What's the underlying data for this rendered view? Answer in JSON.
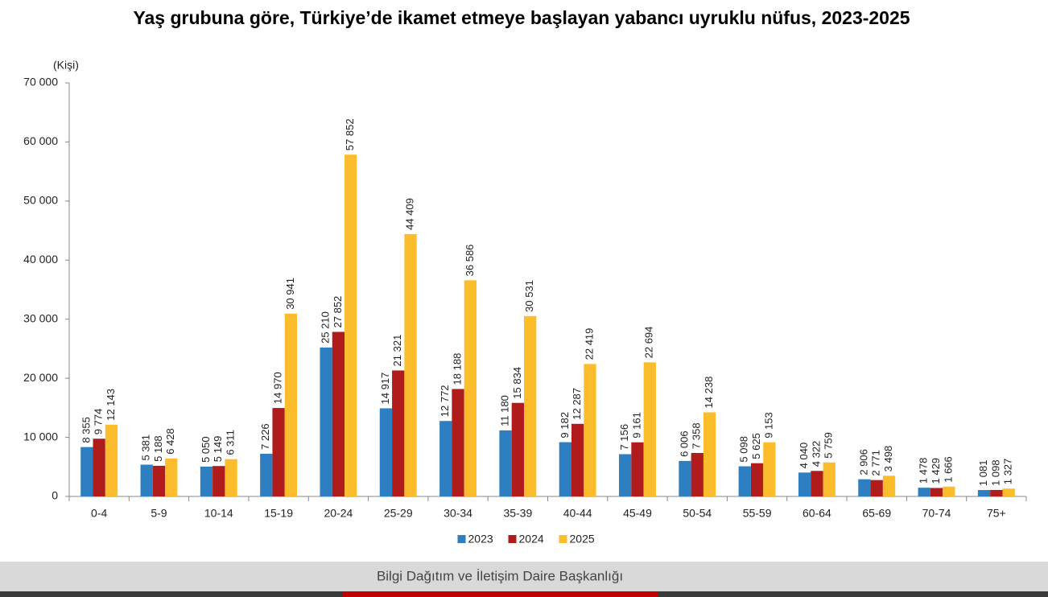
{
  "chart_data": {
    "type": "bar",
    "title": "Yaş grubuna göre, Türkiye’de ikamet etmeye başlayan yabancı uyruklu nüfus, 2023-2025",
    "y_label": "(Kişi)",
    "categories": [
      "0-4",
      "5-9",
      "10-14",
      "15-19",
      "20-24",
      "25-29",
      "30-34",
      "35-39",
      "40-44",
      "45-49",
      "50-54",
      "55-59",
      "60-64",
      "65-69",
      "70-74",
      "75+"
    ],
    "series": [
      {
        "name": "2023",
        "color": "#2e7fc1",
        "values": [
          8355,
          5381,
          5050,
          7226,
          25210,
          14917,
          12772,
          11180,
          9182,
          7156,
          6006,
          5098,
          4040,
          2906,
          1478,
          1081
        ],
        "value_labels": [
          "8 355",
          "5 381",
          "5 050",
          "7 226",
          "25 210",
          "14 917",
          "12 772",
          "11 180",
          "9 182",
          "7 156",
          "6 006",
          "5 098",
          "4 040",
          "2 906",
          "1 478",
          "1 081"
        ]
      },
      {
        "name": "2024",
        "color": "#b01c1c",
        "values": [
          9774,
          5188,
          5149,
          14970,
          27852,
          21321,
          18188,
          15834,
          12287,
          9161,
          7358,
          5625,
          4322,
          2771,
          1429,
          1098
        ],
        "value_labels": [
          "9 774",
          "5 188",
          "5 149",
          "14 970",
          "27 852",
          "21 321",
          "18 188",
          "15 834",
          "12 287",
          "9 161",
          "7 358",
          "5 625",
          "4 322",
          "2 771",
          "1 429",
          "1 098"
        ]
      },
      {
        "name": "2025",
        "color": "#fbbd2c",
        "values": [
          12143,
          6428,
          6311,
          30941,
          57852,
          44409,
          36586,
          30531,
          22419,
          22694,
          14238,
          9153,
          5759,
          3498,
          1666,
          1327
        ],
        "value_labels": [
          "12 143",
          "6 428",
          "6 311",
          "30 941",
          "57 852",
          "44 409",
          "36 586",
          "30 531",
          "22 419",
          "22 694",
          "14 238",
          "9 153",
          "5 759",
          "3 498",
          "1 666",
          "1 327"
        ]
      }
    ],
    "ylim": [
      0,
      70000
    ],
    "yticks": [
      0,
      {
        "value": 10000,
        "label": "10 000"
      },
      {
        "value": 20000,
        "label": "20 000"
      },
      {
        "value": 30000,
        "label": "30 000"
      },
      {
        "value": 40000,
        "label": "40 000"
      },
      {
        "value": 50000,
        "label": "50 000"
      },
      {
        "value": 60000,
        "label": "60 000"
      },
      {
        "value": 70000,
        "label": "70 000"
      }
    ],
    "grid": false,
    "legend": "bottom"
  },
  "footer": {
    "text": "Bilgi Dağıtım ve İletişim Daire Başkanlığı"
  }
}
